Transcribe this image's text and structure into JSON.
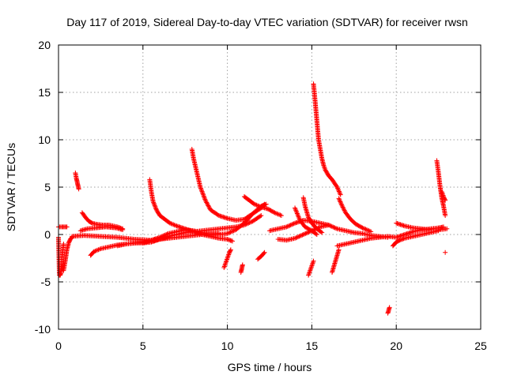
{
  "chart_data": {
    "type": "scatter",
    "title": "Day 117 of 2019, Sidereal Day-to-day VTEC variation (SDTVAR) for receiver rwsn",
    "xlabel": "GPS time / hours",
    "ylabel": "SDTVAR / TECUs",
    "xlim": [
      0,
      25
    ],
    "ylim": [
      -10,
      20
    ],
    "xticks": [
      0,
      5,
      10,
      15,
      20,
      25
    ],
    "yticks": [
      -10,
      -5,
      0,
      5,
      10,
      15,
      20
    ],
    "grid": true,
    "marker": "+",
    "color": "#ff0000",
    "segments": [
      {
        "name": "s01",
        "x": [
          0.0,
          0.05,
          0.1,
          0.15,
          0.2,
          0.3
        ],
        "y": [
          -0.3,
          -4.3,
          -4.3,
          -4.0,
          -2.5,
          -1.0
        ]
      },
      {
        "name": "s02",
        "x": [
          0.0,
          0.2,
          0.5
        ],
        "y": [
          0.8,
          0.8,
          0.8
        ]
      },
      {
        "name": "s03",
        "x": [
          0.3,
          0.4,
          0.5,
          0.6,
          0.7,
          0.8
        ],
        "y": [
          -3.8,
          -2.8,
          -1.6,
          -0.9,
          -0.5,
          -0.3
        ]
      },
      {
        "name": "s04",
        "x": [
          0.8,
          1.5,
          2.5,
          3.5,
          4.5,
          5.5,
          6.5,
          7.5,
          8.5,
          9.5
        ],
        "y": [
          -0.2,
          -0.1,
          -0.2,
          -0.3,
          -0.5,
          -0.6,
          -0.4,
          -0.2,
          0.0,
          0.1
        ]
      },
      {
        "name": "s05",
        "x": [
          1.0,
          1.05,
          1.1,
          1.15,
          1.2
        ],
        "y": [
          6.5,
          6.0,
          5.6,
          5.2,
          4.8
        ]
      },
      {
        "name": "s06",
        "x": [
          1.4,
          1.6,
          1.8,
          2.0,
          2.2,
          2.6,
          3.0,
          3.5,
          3.8
        ],
        "y": [
          2.3,
          1.8,
          1.4,
          1.2,
          1.1,
          1.0,
          1.0,
          0.8,
          0.6
        ]
      },
      {
        "name": "s07",
        "x": [
          1.3,
          1.7,
          2.2,
          2.8,
          3.4,
          3.8
        ],
        "y": [
          0.4,
          0.6,
          0.7,
          0.8,
          0.7,
          0.5
        ]
      },
      {
        "name": "s08",
        "x": [
          1.9,
          2.1,
          2.5,
          3.0,
          3.5,
          4.0,
          4.5,
          5.0,
          5.5,
          6.0,
          6.5
        ],
        "y": [
          -2.2,
          -1.8,
          -1.5,
          -1.3,
          -1.1,
          -1.0,
          -0.9,
          -0.8,
          -0.7,
          -0.5,
          -0.3
        ]
      },
      {
        "name": "s09",
        "x": [
          3.5,
          4.0,
          4.5,
          5.0,
          5.5,
          6.0,
          6.5,
          7.0,
          7.5,
          8.0,
          8.5,
          9.0,
          9.5,
          10.0,
          10.5,
          11.0,
          11.5,
          12.0,
          12.3
        ],
        "y": [
          -1.2,
          -1.0,
          -0.9,
          -0.9,
          -0.6,
          -0.3,
          0.1,
          0.3,
          0.5,
          0.4,
          0.2,
          0.0,
          0.0,
          0.1,
          0.5,
          1.2,
          2.2,
          3.0,
          3.2
        ]
      },
      {
        "name": "s10",
        "x": [
          5.4,
          5.5,
          5.6,
          5.8,
          6.0,
          6.3,
          6.6,
          7.0,
          7.5,
          8.0,
          8.5,
          9.0,
          9.5,
          10.0,
          10.3
        ],
        "y": [
          5.8,
          4.5,
          3.5,
          2.6,
          2.0,
          1.6,
          1.2,
          0.9,
          0.6,
          0.3,
          0.0,
          -0.2,
          -0.4,
          -0.5,
          -0.7
        ]
      },
      {
        "name": "s11",
        "x": [
          7.9,
          8.0,
          8.2,
          8.4,
          8.7,
          9.0,
          9.5,
          10.0,
          10.5,
          11.0,
          11.5,
          12.0,
          12.2
        ],
        "y": [
          9.0,
          8.0,
          6.5,
          5.0,
          3.6,
          2.6,
          2.0,
          1.7,
          1.5,
          1.6,
          2.2,
          2.8,
          3.2
        ]
      },
      {
        "name": "s12",
        "x": [
          5.0,
          5.5,
          6.0,
          6.5,
          7.0,
          7.5,
          8.0,
          8.5,
          9.0,
          9.5,
          10.0,
          10.5,
          11.0,
          11.5,
          12.0
        ],
        "y": [
          -0.9,
          -0.8,
          -0.5,
          -0.2,
          0.0,
          0.2,
          0.3,
          0.4,
          0.5,
          0.6,
          0.7,
          0.8,
          1.0,
          1.4,
          2.0
        ]
      },
      {
        "name": "s13",
        "x": [
          9.8,
          9.9,
          10.0,
          10.1,
          10.2
        ],
        "y": [
          -3.5,
          -3.0,
          -2.5,
          -2.0,
          -1.6
        ]
      },
      {
        "name": "s14",
        "x": [
          10.8,
          10.85,
          10.9
        ],
        "y": [
          -4.0,
          -3.6,
          -3.2
        ]
      },
      {
        "name": "s15",
        "x": [
          11.0,
          11.3,
          11.6,
          12.0,
          12.4,
          12.8,
          13.2
        ],
        "y": [
          4.0,
          3.6,
          3.2,
          2.9,
          2.7,
          2.3,
          2.0
        ]
      },
      {
        "name": "s16",
        "x": [
          11.8,
          12.0,
          12.2
        ],
        "y": [
          -2.6,
          -2.3,
          -1.9
        ]
      },
      {
        "name": "s17",
        "x": [
          12.5,
          13.0,
          13.5,
          14.0,
          14.5,
          15.0,
          15.5,
          16.0,
          16.5,
          17.0,
          17.5,
          18.0,
          18.5,
          19.0,
          19.5
        ],
        "y": [
          0.4,
          0.6,
          0.8,
          1.2,
          1.5,
          1.4,
          1.2,
          1.0,
          0.6,
          0.4,
          0.2,
          0.1,
          -0.1,
          -0.2,
          -0.3
        ]
      },
      {
        "name": "s18",
        "x": [
          13.0,
          13.5,
          14.0,
          14.5,
          15.0,
          15.5,
          16.0
        ],
        "y": [
          -0.5,
          -0.6,
          -0.4,
          0.0,
          0.4,
          0.8,
          1.0
        ]
      },
      {
        "name": "s19",
        "x": [
          14.0,
          14.3,
          14.6,
          15.0,
          15.3
        ],
        "y": [
          2.8,
          1.5,
          0.8,
          0.4,
          0.0
        ]
      },
      {
        "name": "s20",
        "x": [
          14.5,
          14.6,
          14.7,
          14.8,
          15.0,
          15.3,
          15.6
        ],
        "y": [
          3.9,
          3.0,
          2.4,
          1.8,
          1.2,
          0.6,
          0.2
        ]
      },
      {
        "name": "s21",
        "x": [
          14.8,
          14.9,
          15.0,
          15.1
        ],
        "y": [
          -4.3,
          -3.8,
          -3.3,
          -2.8
        ]
      },
      {
        "name": "s22",
        "x": [
          15.1,
          15.15,
          15.2,
          15.25,
          15.3,
          15.35,
          15.4,
          15.5,
          15.6,
          15.7,
          15.8,
          16.0,
          16.2,
          16.5,
          16.7
        ],
        "y": [
          15.9,
          15.0,
          14.0,
          13.0,
          12.0,
          11.0,
          10.0,
          9.0,
          8.0,
          7.3,
          6.8,
          6.2,
          5.8,
          5.0,
          4.2
        ]
      },
      {
        "name": "s23",
        "x": [
          16.2,
          16.3,
          16.4,
          16.5,
          16.6
        ],
        "y": [
          -4.0,
          -3.4,
          -2.8,
          -2.2,
          -1.6
        ]
      },
      {
        "name": "s24",
        "x": [
          16.5,
          17.0,
          17.5,
          18.0,
          18.5,
          19.0,
          19.5,
          20.0,
          20.5,
          21.0,
          21.5,
          22.0,
          22.5,
          22.8
        ],
        "y": [
          -1.2,
          -1.0,
          -0.8,
          -0.6,
          -0.4,
          -0.3,
          -0.2,
          -0.3,
          0.0,
          0.3,
          0.5,
          0.6,
          0.7,
          0.8
        ]
      },
      {
        "name": "s25",
        "x": [
          16.6,
          16.8,
          17.0,
          17.3,
          17.6,
          18.0,
          18.5
        ],
        "y": [
          3.8,
          3.0,
          2.3,
          1.6,
          1.1,
          0.7,
          0.3
        ]
      },
      {
        "name": "s26",
        "x": [
          19.5,
          19.55,
          19.6
        ],
        "y": [
          -8.3,
          -8.0,
          -7.7
        ]
      },
      {
        "name": "s27",
        "x": [
          19.8,
          20.0,
          20.2,
          20.5,
          21.0,
          21.5,
          22.0,
          22.5
        ],
        "y": [
          -1.2,
          -0.8,
          -0.6,
          -0.4,
          -0.2,
          0.0,
          0.2,
          0.4
        ]
      },
      {
        "name": "s28",
        "x": [
          20.0,
          20.5,
          21.0,
          21.5,
          22.0,
          22.5,
          23.0
        ],
        "y": [
          1.2,
          0.9,
          0.7,
          0.6,
          0.5,
          0.5,
          0.6
        ]
      },
      {
        "name": "s29",
        "x": [
          22.4,
          22.5,
          22.6,
          22.7,
          22.8,
          22.9
        ],
        "y": [
          7.8,
          6.5,
          5.0,
          3.8,
          3.0,
          2.0
        ]
      },
      {
        "name": "s30",
        "x": [
          22.7,
          22.8,
          22.9
        ],
        "y": [
          4.5,
          4.0,
          3.6
        ]
      },
      {
        "name": "s31",
        "x": [
          22.9
        ],
        "y": [
          -1.9
        ]
      }
    ]
  }
}
